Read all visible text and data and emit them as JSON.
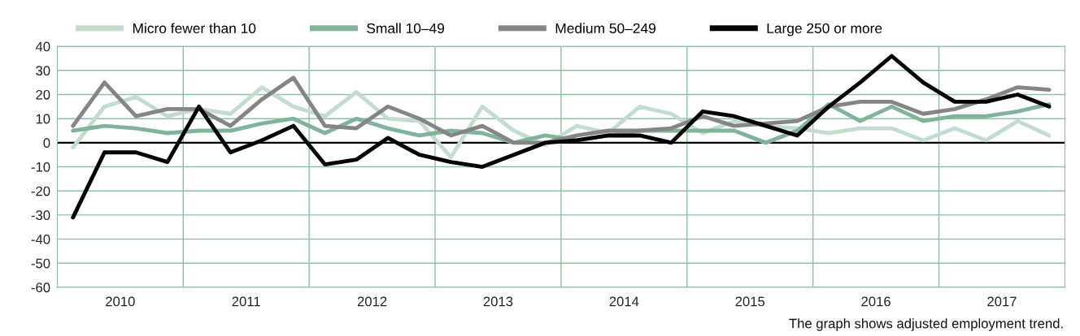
{
  "chart_data": {
    "type": "line",
    "x": [
      2010.125,
      2010.375,
      2010.625,
      2010.875,
      2011.125,
      2011.375,
      2011.625,
      2011.875,
      2012.125,
      2012.375,
      2012.625,
      2012.875,
      2013.125,
      2013.375,
      2013.625,
      2013.875,
      2014.125,
      2014.375,
      2014.625,
      2014.875,
      2015.125,
      2015.375,
      2015.625,
      2015.875,
      2016.125,
      2016.375,
      2016.625,
      2016.875,
      2017.125,
      2017.375,
      2017.625,
      2017.875
    ],
    "series": [
      {
        "name": "Micro fewer than 10",
        "color": "#c3dccf",
        "values": [
          -2,
          15,
          19,
          11,
          14,
          12,
          23,
          15,
          11,
          21,
          10,
          9,
          -6,
          15,
          5,
          -1,
          7,
          4,
          15,
          12,
          4,
          9,
          7,
          6,
          4,
          6,
          6,
          1,
          6,
          1,
          9,
          3
        ]
      },
      {
        "name": "Small 10–49",
        "color": "#80b39a",
        "values": [
          5,
          7,
          6,
          4,
          5,
          5,
          8,
          10,
          4,
          10,
          6,
          3,
          5,
          4,
          0,
          3,
          1,
          3,
          5,
          5,
          5,
          5,
          0,
          5,
          16,
          9,
          15,
          9,
          11,
          11,
          13,
          16
        ]
      },
      {
        "name": "Medium 50–249",
        "color": "#858585",
        "values": [
          7,
          25,
          11,
          14,
          14,
          7,
          18,
          27,
          7,
          6,
          15,
          10,
          3,
          7,
          0,
          0,
          3,
          5,
          5,
          6,
          11,
          7,
          8,
          9,
          15,
          17,
          17,
          12,
          14,
          18,
          23,
          22
        ]
      },
      {
        "name": "Large 250 or more",
        "color": "#000000",
        "values": [
          -31,
          -4,
          -4,
          -8,
          15,
          -4,
          1,
          7,
          -9,
          -7,
          2,
          -5,
          -8,
          -10,
          -5,
          0,
          1,
          3,
          3,
          0,
          13,
          11,
          7,
          3,
          15,
          25,
          36,
          25,
          17,
          17,
          20,
          15
        ]
      }
    ],
    "xlim": [
      2010,
      2018
    ],
    "xticks": [
      {
        "value": 2010.5,
        "label": "2010"
      },
      {
        "value": 2011,
        "label": null
      },
      {
        "value": 2011.5,
        "label": "2011"
      },
      {
        "value": 2012,
        "label": null
      },
      {
        "value": 2012.5,
        "label": "2012"
      },
      {
        "value": 2013,
        "label": null
      },
      {
        "value": 2013.5,
        "label": "2013"
      },
      {
        "value": 2014,
        "label": null
      },
      {
        "value": 2014.5,
        "label": "2014"
      },
      {
        "value": 2015,
        "label": null
      },
      {
        "value": 2015.5,
        "label": "2015"
      },
      {
        "value": 2016,
        "label": null
      },
      {
        "value": 2016.5,
        "label": "2016"
      },
      {
        "value": 2017,
        "label": null
      },
      {
        "value": 2017.5,
        "label": "2017"
      }
    ],
    "ylim": [
      -60,
      40
    ],
    "yticks": [
      -60,
      -50,
      -40,
      -30,
      -20,
      -10,
      0,
      10,
      20,
      30,
      40
    ],
    "ref_lines": [
      {
        "axis": "y",
        "value": 0,
        "color": "#000000"
      }
    ],
    "grid": true,
    "legend": "top",
    "marker": "none",
    "line_style": "solid",
    "annotations": [
      "The graph shows adjusted employment trend."
    ]
  }
}
